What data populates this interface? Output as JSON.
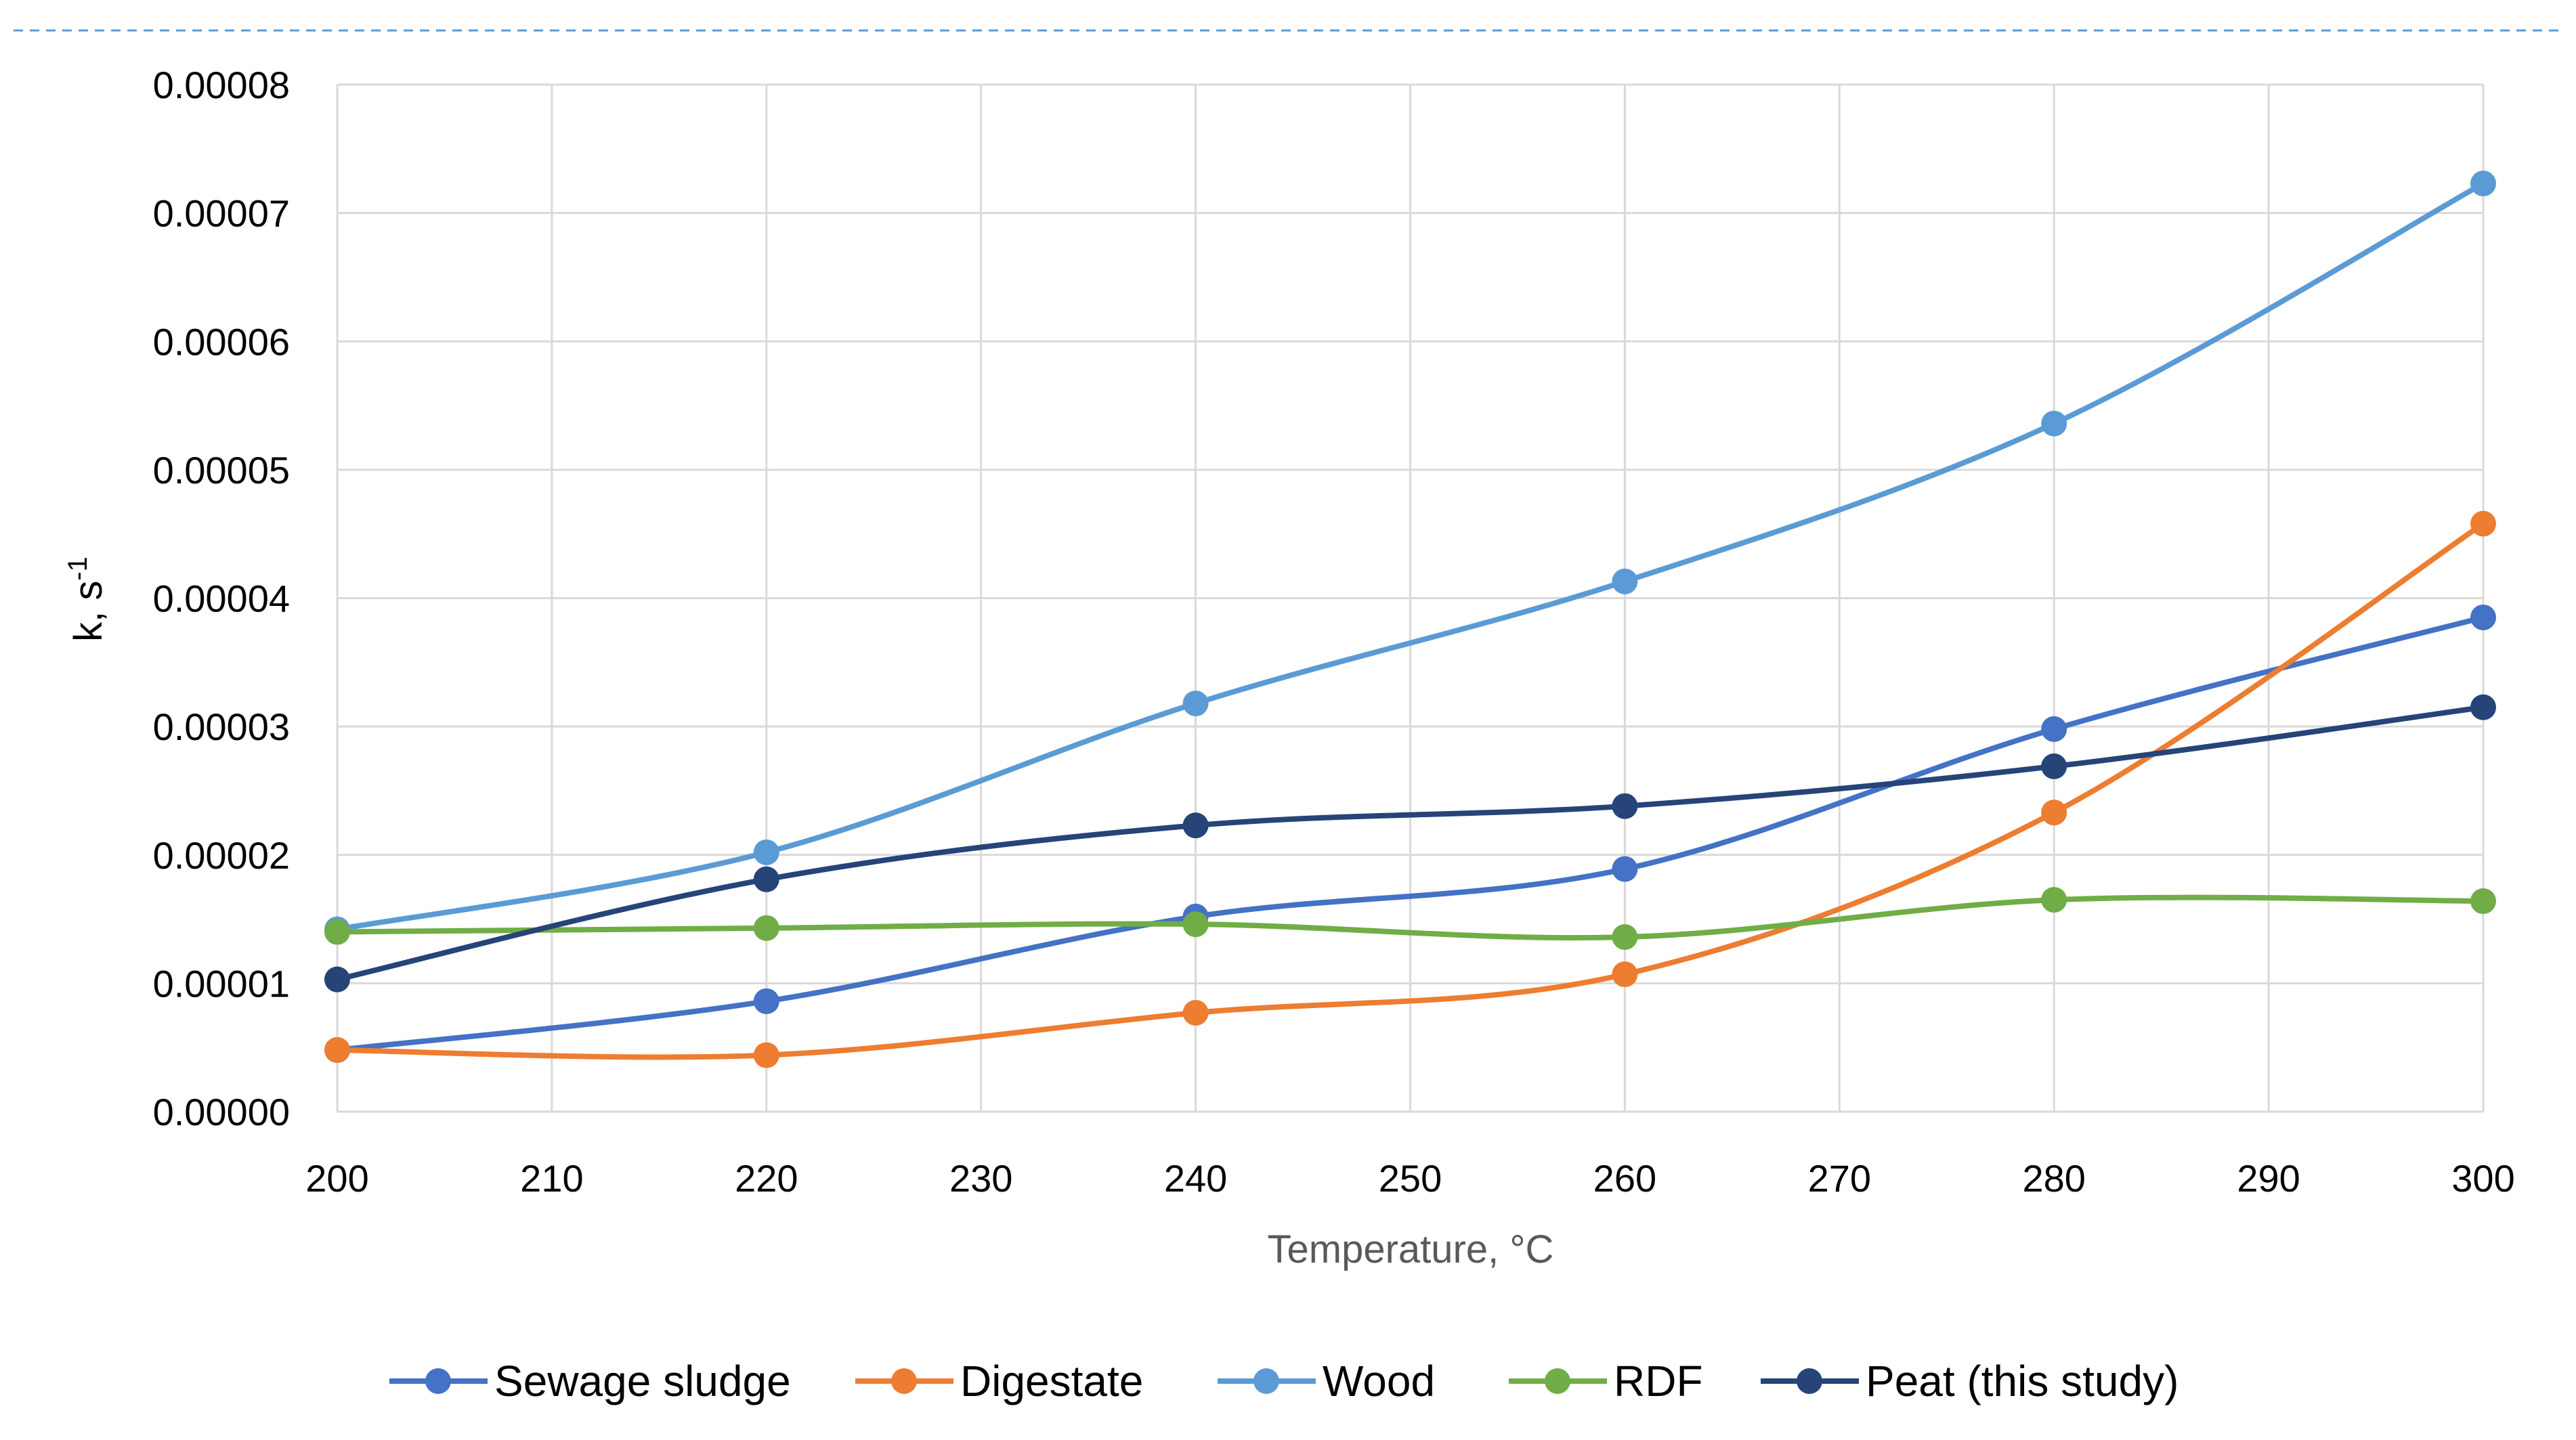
{
  "chart_data": {
    "type": "line",
    "title": "",
    "xlabel": "Temperature, °C",
    "ylabel": {
      "base": "k, s",
      "superscript": "-1"
    },
    "x_ticks": [
      200,
      210,
      220,
      230,
      240,
      250,
      260,
      270,
      280,
      290,
      300
    ],
    "y_ticks": [
      "0.00000",
      "0.00001",
      "0.00002",
      "0.00003",
      "0.00004",
      "0.00005",
      "0.00006",
      "0.00007",
      "0.00008"
    ],
    "xlim": [
      200,
      300
    ],
    "ylim": [
      0,
      8e-05
    ],
    "grid": true,
    "legend_position": "bottom",
    "x": [
      200,
      220,
      240,
      260,
      280,
      300
    ],
    "series": [
      {
        "name": "Sewage sludge",
        "color": "#4472C4",
        "values": [
          4.8e-06,
          8.6e-06,
          1.52e-05,
          1.89e-05,
          2.98e-05,
          3.85e-05
        ]
      },
      {
        "name": "Digestate",
        "color": "#ED7D31",
        "values": [
          4.8e-06,
          4.4e-06,
          7.7e-06,
          1.07e-05,
          2.33e-05,
          4.58e-05
        ]
      },
      {
        "name": "Wood",
        "color": "#5B9BD5",
        "values": [
          1.42e-05,
          2.02e-05,
          3.18e-05,
          4.13e-05,
          5.36e-05,
          7.23e-05
        ]
      },
      {
        "name": "RDF",
        "color": "#70AD47",
        "values": [
          1.4e-05,
          1.43e-05,
          1.46e-05,
          1.36e-05,
          1.65e-05,
          1.64e-05
        ]
      },
      {
        "name": "Peat (this study)",
        "color": "#264478",
        "values": [
          1.03e-05,
          1.81e-05,
          2.23e-05,
          2.38e-05,
          2.69e-05,
          3.15e-05
        ]
      }
    ]
  }
}
